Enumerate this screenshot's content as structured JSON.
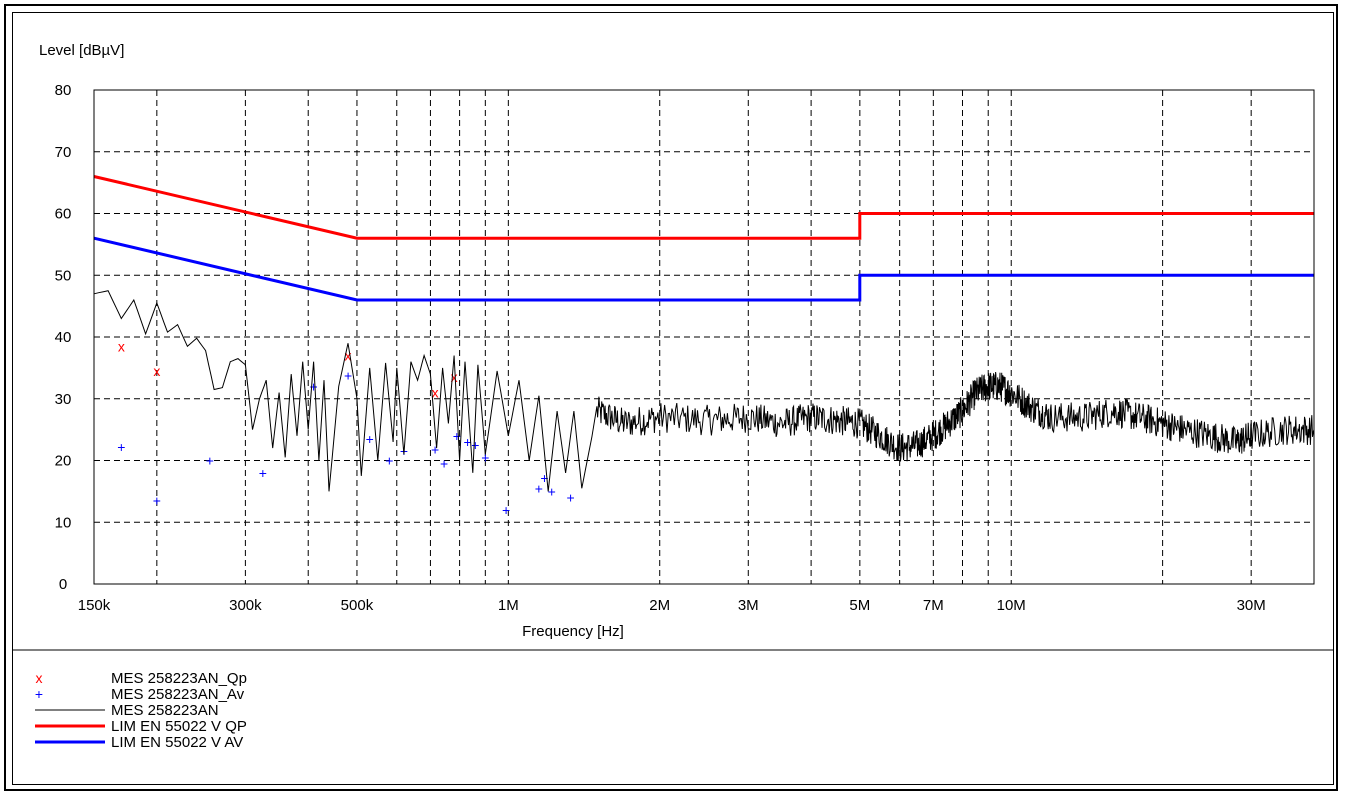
{
  "chart_data": {
    "type": "line",
    "ylabel": "Level [dBµV]",
    "xlabel": "Frequency [Hz]",
    "x_scale": "log",
    "xlim": [
      150000,
      40000000
    ],
    "ylim": [
      0,
      80
    ],
    "grid": true,
    "legend_position": "bottom",
    "y_ticks": [
      "0",
      "10",
      "20",
      "30",
      "40",
      "50",
      "60",
      "70",
      "80"
    ],
    "x_ticks": [
      {
        "value": 150000,
        "label": "150k"
      },
      {
        "value": 200000,
        "label": ""
      },
      {
        "value": 300000,
        "label": "300k"
      },
      {
        "value": 400000,
        "label": ""
      },
      {
        "value": 500000,
        "label": "500k"
      },
      {
        "value": 600000,
        "label": ""
      },
      {
        "value": 700000,
        "label": ""
      },
      {
        "value": 800000,
        "label": ""
      },
      {
        "value": 900000,
        "label": ""
      },
      {
        "value": 1000000,
        "label": "1M"
      },
      {
        "value": 2000000,
        "label": "2M"
      },
      {
        "value": 3000000,
        "label": "3M"
      },
      {
        "value": 4000000,
        "label": ""
      },
      {
        "value": 5000000,
        "label": "5M"
      },
      {
        "value": 6000000,
        "label": ""
      },
      {
        "value": 7000000,
        "label": "7M"
      },
      {
        "value": 8000000,
        "label": ""
      },
      {
        "value": 9000000,
        "label": ""
      },
      {
        "value": 10000000,
        "label": "10M"
      },
      {
        "value": 20000000,
        "label": ""
      },
      {
        "value": 30000000,
        "label": "30M"
      }
    ],
    "series": [
      {
        "name": "MES  258223AN_Qp",
        "legend_symbol": "x",
        "kind": "markers",
        "marker": "x",
        "color": "#ff0000",
        "points": [
          [
            170000,
            38.5
          ],
          [
            200000,
            34.5
          ],
          [
            480000,
            37
          ],
          [
            715000,
            31
          ],
          [
            780000,
            33.5
          ]
        ]
      },
      {
        "name": "MES  258223AN_Av",
        "legend_symbol": "+",
        "kind": "markers",
        "marker": "+",
        "color": "#0000ff",
        "points": [
          [
            170000,
            22.2
          ],
          [
            200000,
            13.5
          ],
          [
            255000,
            20
          ],
          [
            325000,
            18
          ],
          [
            410000,
            32
          ],
          [
            480000,
            33.8
          ],
          [
            530000,
            23.5
          ],
          [
            580000,
            20
          ],
          [
            620000,
            21.5
          ],
          [
            715000,
            21.8
          ],
          [
            745000,
            19.5
          ],
          [
            790000,
            24
          ],
          [
            830000,
            23
          ],
          [
            860000,
            22.5
          ],
          [
            900000,
            20.5
          ],
          [
            990000,
            12
          ],
          [
            1150000,
            15.5
          ],
          [
            1180000,
            17.2
          ],
          [
            1220000,
            15
          ],
          [
            1330000,
            14
          ]
        ]
      },
      {
        "name": "MES  258223AN",
        "legend_symbol": "",
        "kind": "trace",
        "color": "#000000",
        "points": [
          [
            150000,
            47
          ],
          [
            160000,
            47.5
          ],
          [
            170000,
            43
          ],
          [
            180000,
            46
          ],
          [
            190000,
            40.5
          ],
          [
            200000,
            45.5
          ],
          [
            210000,
            40.8
          ],
          [
            220000,
            42
          ],
          [
            230000,
            38.5
          ],
          [
            240000,
            39.8
          ],
          [
            250000,
            37.8
          ],
          [
            260000,
            31.5
          ],
          [
            270000,
            31.8
          ],
          [
            280000,
            36
          ],
          [
            290000,
            36.5
          ],
          [
            300000,
            35.5
          ],
          [
            310000,
            25
          ],
          [
            320000,
            30
          ],
          [
            330000,
            33
          ],
          [
            340000,
            22
          ],
          [
            350000,
            31
          ],
          [
            360000,
            20.5
          ],
          [
            370000,
            34
          ],
          [
            380000,
            24
          ],
          [
            390000,
            36
          ],
          [
            400000,
            25
          ],
          [
            410000,
            36
          ],
          [
            420000,
            20
          ],
          [
            430000,
            33
          ],
          [
            440000,
            15
          ],
          [
            460000,
            32
          ],
          [
            480000,
            39
          ],
          [
            500000,
            30
          ],
          [
            510000,
            17.5
          ],
          [
            530000,
            35
          ],
          [
            550000,
            20
          ],
          [
            570000,
            35.8
          ],
          [
            590000,
            23
          ],
          [
            600000,
            35
          ],
          [
            620000,
            21
          ],
          [
            640000,
            36
          ],
          [
            660000,
            33
          ],
          [
            680000,
            37
          ],
          [
            700000,
            34
          ],
          [
            720000,
            22
          ],
          [
            740000,
            35
          ],
          [
            760000,
            26
          ],
          [
            780000,
            37
          ],
          [
            800000,
            20
          ],
          [
            820000,
            36
          ],
          [
            850000,
            18
          ],
          [
            870000,
            35.5
          ],
          [
            900000,
            21
          ],
          [
            950000,
            34.5
          ],
          [
            1000000,
            24
          ],
          [
            1050000,
            33
          ],
          [
            1100000,
            20
          ],
          [
            1150000,
            30.5
          ],
          [
            1200000,
            15
          ],
          [
            1250000,
            28
          ],
          [
            1300000,
            18
          ],
          [
            1350000,
            28
          ],
          [
            1400000,
            15.5
          ],
          [
            1500000,
            28
          ],
          [
            1700000,
            26
          ],
          [
            2000000,
            27
          ],
          [
            2500000,
            26.5
          ],
          [
            3000000,
            27
          ],
          [
            3500000,
            26
          ],
          [
            4000000,
            27
          ],
          [
            4500000,
            26.5
          ],
          [
            5000000,
            26
          ],
          [
            5500000,
            24
          ],
          [
            6000000,
            22
          ],
          [
            6500000,
            22.5
          ],
          [
            7000000,
            24
          ],
          [
            7500000,
            26
          ],
          [
            8000000,
            28
          ],
          [
            8500000,
            31
          ],
          [
            9000000,
            32
          ],
          [
            9500000,
            32
          ],
          [
            10000000,
            31
          ],
          [
            11000000,
            28.5
          ],
          [
            12000000,
            27
          ],
          [
            14000000,
            27
          ],
          [
            16000000,
            28
          ],
          [
            18000000,
            27
          ],
          [
            20000000,
            26
          ],
          [
            22000000,
            25
          ],
          [
            25000000,
            24
          ],
          [
            28000000,
            23
          ],
          [
            30000000,
            24
          ],
          [
            35000000,
            25
          ],
          [
            40000000,
            25
          ]
        ]
      },
      {
        "name": "LIM  EN 55022 V QP",
        "legend_symbol": "",
        "kind": "limit",
        "color": "#ff0000",
        "points": [
          [
            150000,
            66
          ],
          [
            500000,
            56
          ],
          [
            5000000,
            56
          ],
          [
            5000000,
            60
          ],
          [
            40000000,
            60
          ]
        ]
      },
      {
        "name": "LIM  EN 55022 V AV",
        "legend_symbol": "",
        "kind": "limit",
        "color": "#0000ff",
        "points": [
          [
            150000,
            56
          ],
          [
            500000,
            46
          ],
          [
            5000000,
            46
          ],
          [
            5000000,
            50
          ],
          [
            40000000,
            50
          ]
        ]
      }
    ]
  }
}
